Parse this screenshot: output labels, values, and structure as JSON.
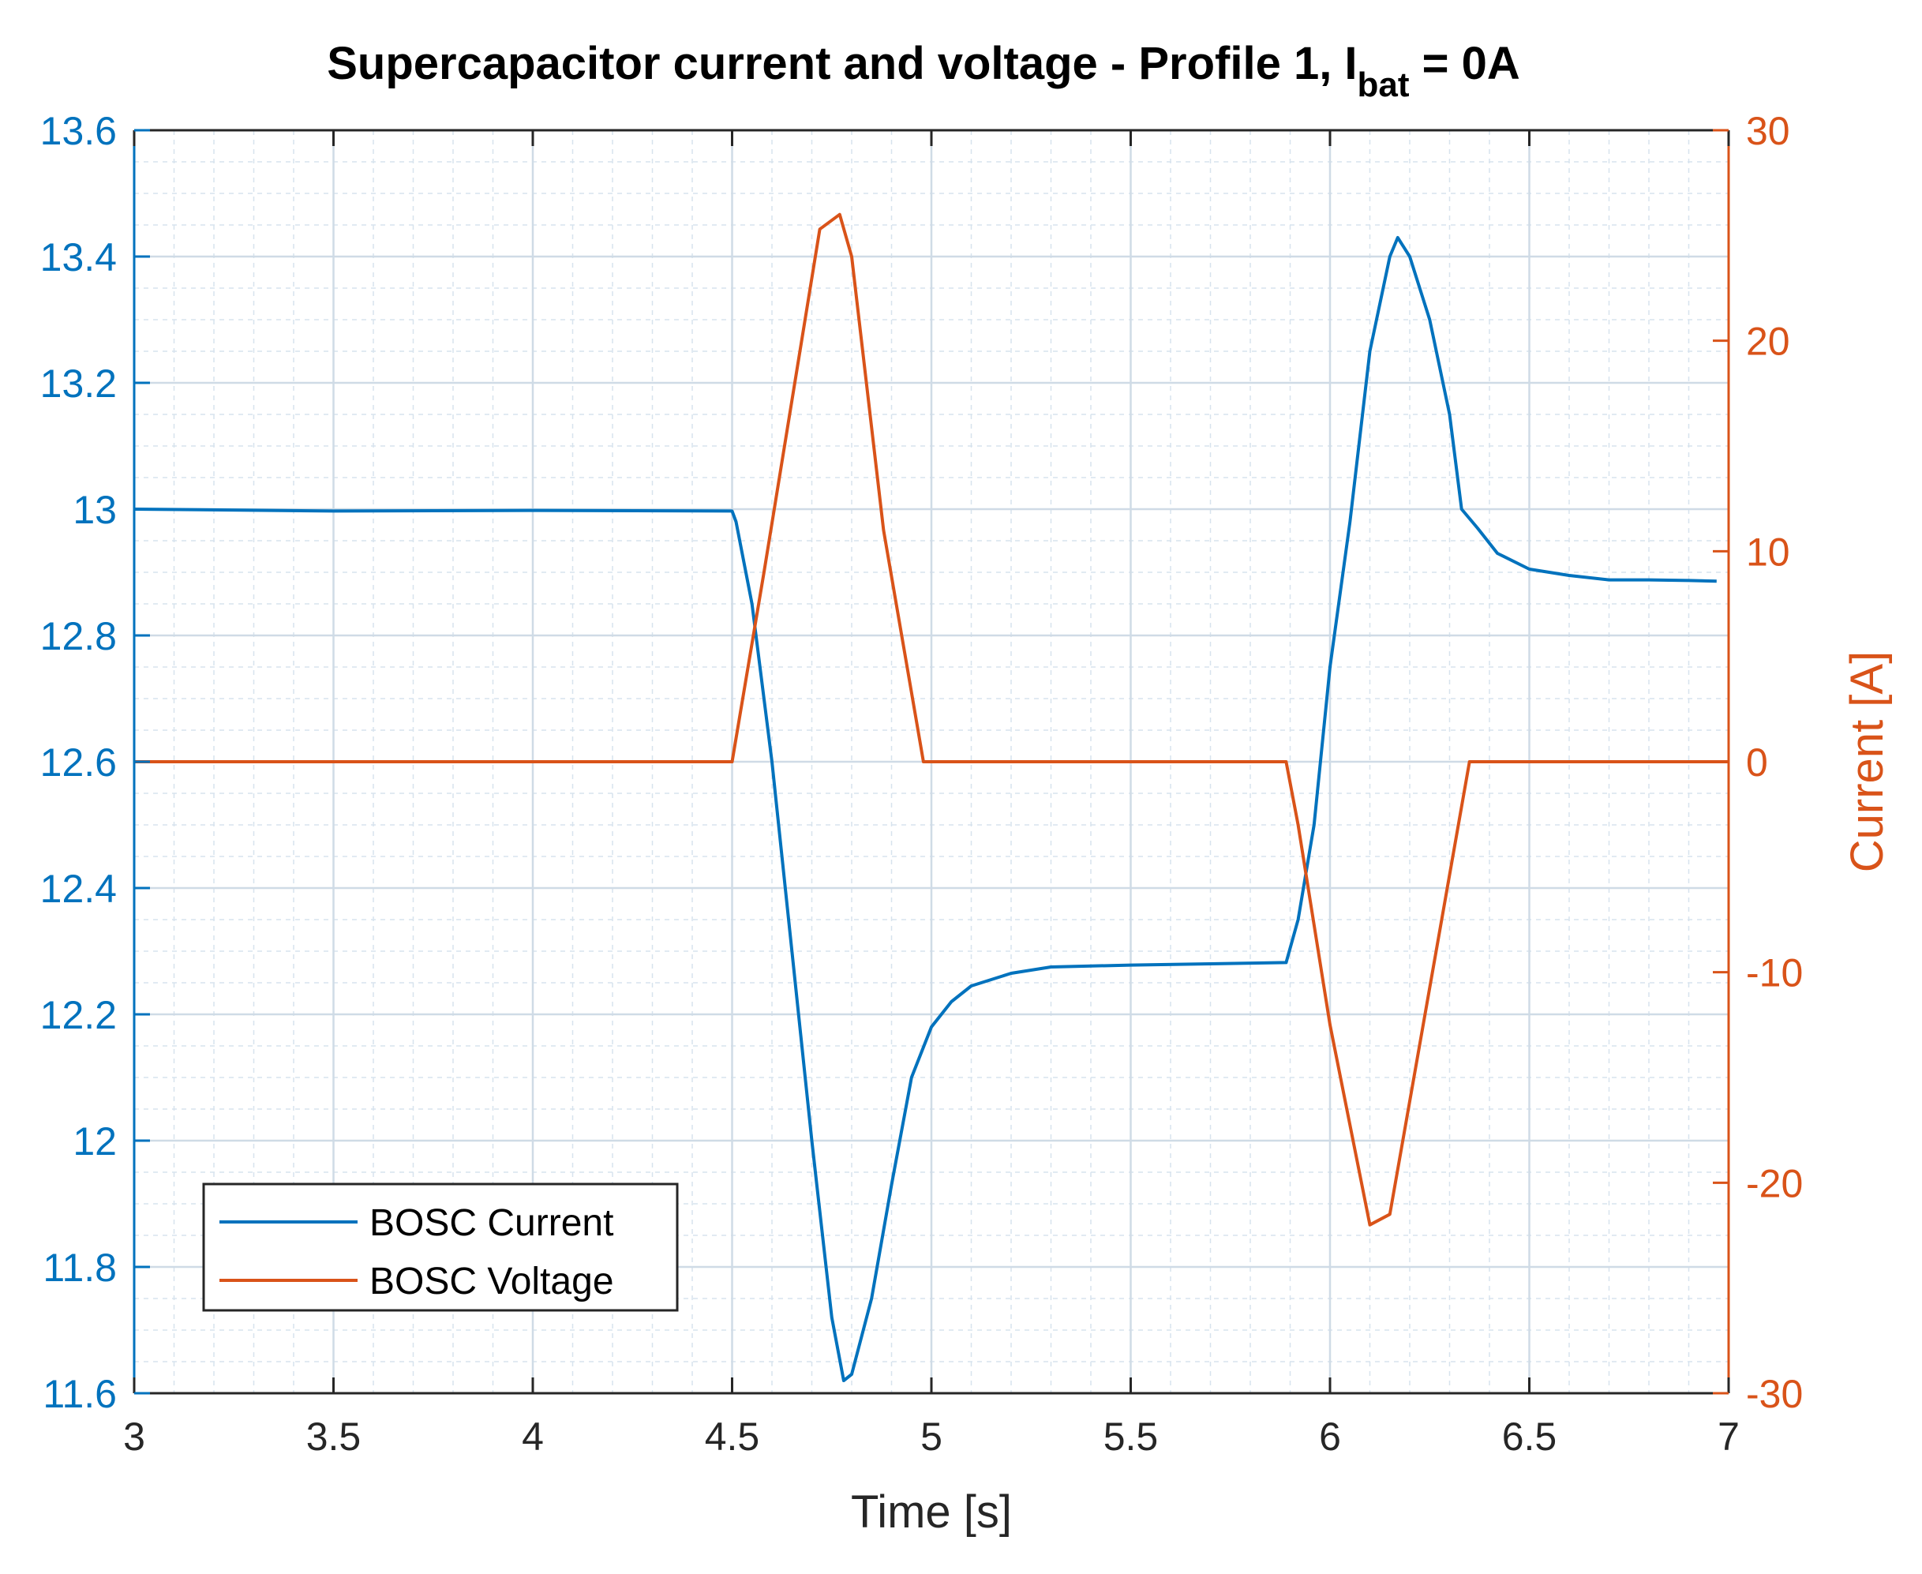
{
  "chart_data": {
    "type": "line",
    "title": {
      "main": "Supercapacitor current and voltage - Profile 1, I",
      "subscript": "bat",
      "suffix": " = 0A"
    },
    "xlabel": "Time [s]",
    "ylabel_left": "",
    "ylabel_right": "Current [A]",
    "xlim": [
      3,
      7
    ],
    "ylim_left": [
      11.6,
      13.6
    ],
    "ylim_right": [
      -30,
      30
    ],
    "x_ticks": [
      "3",
      "3.5",
      "4",
      "4.5",
      "5",
      "5.5",
      "6",
      "6.5",
      "7"
    ],
    "y_left_ticks": [
      "11.6",
      "11.8",
      "12",
      "12.2",
      "12.4",
      "12.6",
      "12.8",
      "13",
      "13.2",
      "13.4",
      "13.6"
    ],
    "y_right_ticks": [
      "-30",
      "-20",
      "-10",
      "0",
      "10",
      "20",
      "30"
    ],
    "grid": true,
    "minor_grid": true,
    "legend_position": "bottom-left",
    "colors": {
      "left_axis": "#0072BD",
      "right_axis": "#D95319",
      "grid": "#d7e3ee"
    },
    "series": [
      {
        "name": "BOSC Current",
        "axis": "left",
        "color": "#0072BD",
        "x": [
          3.0,
          3.5,
          4.0,
          4.5,
          4.51,
          4.55,
          4.6,
          4.65,
          4.7,
          4.75,
          4.78,
          4.8,
          4.85,
          4.9,
          4.95,
          5.0,
          5.05,
          5.1,
          5.2,
          5.3,
          5.5,
          5.7,
          5.89,
          5.92,
          5.96,
          6.0,
          6.05,
          6.1,
          6.15,
          6.17,
          6.2,
          6.25,
          6.3,
          6.33,
          6.37,
          6.42,
          6.5,
          6.6,
          6.7,
          6.8,
          6.9,
          6.97
        ],
        "y": [
          13.0,
          12.997,
          12.998,
          12.997,
          12.98,
          12.85,
          12.6,
          12.3,
          12.0,
          11.72,
          11.62,
          11.63,
          11.75,
          11.93,
          12.1,
          12.18,
          12.22,
          12.245,
          12.265,
          12.275,
          12.278,
          12.28,
          12.282,
          12.35,
          12.5,
          12.75,
          12.98,
          13.25,
          13.4,
          13.43,
          13.4,
          13.3,
          13.15,
          13.0,
          12.97,
          12.93,
          12.905,
          12.895,
          12.888,
          12.888,
          12.887,
          12.886
        ]
      },
      {
        "name": "BOSC Voltage",
        "axis": "right",
        "color": "#D95319",
        "x": [
          3.0,
          3.5,
          4.0,
          4.5,
          4.58,
          4.72,
          4.77,
          4.8,
          4.88,
          4.98,
          5.5,
          5.89,
          5.92,
          6.0,
          6.1,
          6.15,
          6.35,
          6.6,
          7.0
        ],
        "y": [
          0,
          0,
          0,
          0,
          9,
          25.3,
          26,
          24,
          11,
          0,
          0,
          0,
          -3,
          -12.5,
          -22,
          -21.5,
          0,
          0,
          0
        ]
      }
    ]
  }
}
